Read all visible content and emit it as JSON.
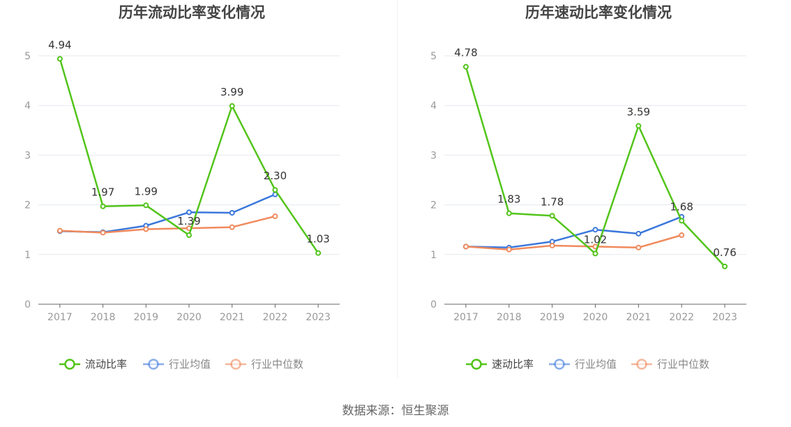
{
  "colors": {
    "axis": "#666666",
    "grid": "#e5e8ef",
    "tick_text": "#999999",
    "title_text": "#444444",
    "divider": "#eeeeee"
  },
  "source_text": "数据来源：恒生聚源",
  "chart_data": [
    {
      "type": "line",
      "title": "历年流动比率变化情况",
      "xlabel": "",
      "ylabel": "",
      "categories": [
        "2017",
        "2018",
        "2019",
        "2020",
        "2021",
        "2022",
        "2023"
      ],
      "ylim": [
        0,
        5
      ],
      "yticks": [
        "0",
        "1",
        "2",
        "3",
        "4",
        "5"
      ],
      "grid": true,
      "legend_position": "bottom",
      "series": [
        {
          "name": "流动比率",
          "color": "#52c41a",
          "values": [
            4.94,
            1.97,
            1.99,
            1.39,
            3.99,
            2.3,
            1.03
          ],
          "labels": [
            "4.94",
            "1.97",
            "1.99",
            "1.39",
            "3.99",
            "2.30",
            "1.03"
          ]
        },
        {
          "name": "行业均值",
          "color": "#3b78dc",
          "values": [
            1.47,
            1.45,
            1.58,
            1.85,
            1.84,
            2.21,
            null
          ]
        },
        {
          "name": "行业中位数",
          "color": "#f08a5d",
          "values": [
            1.48,
            1.44,
            1.51,
            1.53,
            1.55,
            1.77,
            null
          ]
        }
      ]
    },
    {
      "type": "line",
      "title": "历年速动比率变化情况",
      "xlabel": "",
      "ylabel": "",
      "categories": [
        "2017",
        "2018",
        "2019",
        "2020",
        "2021",
        "2022",
        "2023"
      ],
      "ylim": [
        0,
        5
      ],
      "yticks": [
        "0",
        "1",
        "2",
        "3",
        "4",
        "5"
      ],
      "grid": true,
      "legend_position": "bottom",
      "series": [
        {
          "name": "速动比率",
          "color": "#52c41a",
          "values": [
            4.78,
            1.83,
            1.78,
            1.02,
            3.59,
            1.68,
            0.76
          ],
          "labels": [
            "4.78",
            "1.83",
            "1.78",
            "1.02",
            "3.59",
            "1.68",
            "0.76"
          ]
        },
        {
          "name": "行业均值",
          "color": "#3b78dc",
          "values": [
            1.16,
            1.14,
            1.26,
            1.5,
            1.42,
            1.76,
            null
          ]
        },
        {
          "name": "行业中位数",
          "color": "#f08a5d",
          "values": [
            1.16,
            1.1,
            1.18,
            1.16,
            1.14,
            1.39,
            null
          ]
        }
      ]
    }
  ]
}
